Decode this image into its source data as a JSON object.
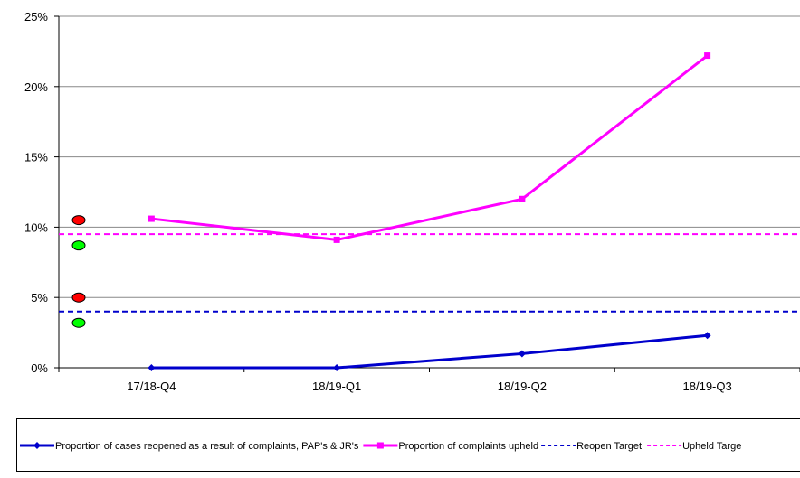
{
  "chart_data": {
    "type": "line",
    "title": "",
    "xlabel": "",
    "ylabel": "",
    "categories": [
      "17/18-Q4",
      "18/19-Q1",
      "18/19-Q2",
      "18/19-Q3"
    ],
    "ylim": [
      0,
      25
    ],
    "y_ticks": [
      0,
      5,
      10,
      15,
      20,
      25
    ],
    "y_tick_labels": [
      "0%",
      "5%",
      "10%",
      "15%",
      "20%",
      "25%"
    ],
    "y_unit": "%",
    "grid": "horizontal",
    "legend_position": "bottom",
    "series": [
      {
        "name": "Proportion of cases reopened as a result of complaints, PAP's & JR's",
        "values": [
          0,
          0,
          1.0,
          2.3
        ],
        "color": "#0000cc",
        "marker": "diamond",
        "style": "solid"
      },
      {
        "name": "Proportion of complaints upheld",
        "values": [
          10.6,
          9.1,
          12.0,
          22.2
        ],
        "color": "#ff00ff",
        "marker": "square",
        "style": "solid"
      },
      {
        "name": "Reopen Target",
        "values": [
          4,
          4,
          4,
          4
        ],
        "color": "#0000cc",
        "marker": "none",
        "style": "dashed"
      },
      {
        "name": "Upheld Targe",
        "values": [
          9.5,
          9.5,
          9.5,
          9.5
        ],
        "color": "#ff00ff",
        "marker": "none",
        "style": "dashed"
      }
    ],
    "rag_indicators": [
      {
        "color": "#ff0000",
        "value": 10.5
      },
      {
        "color": "#00ff00",
        "value": 8.7
      },
      {
        "color": "#ff0000",
        "value": 5.0
      },
      {
        "color": "#00ff00",
        "value": 3.2
      }
    ]
  }
}
